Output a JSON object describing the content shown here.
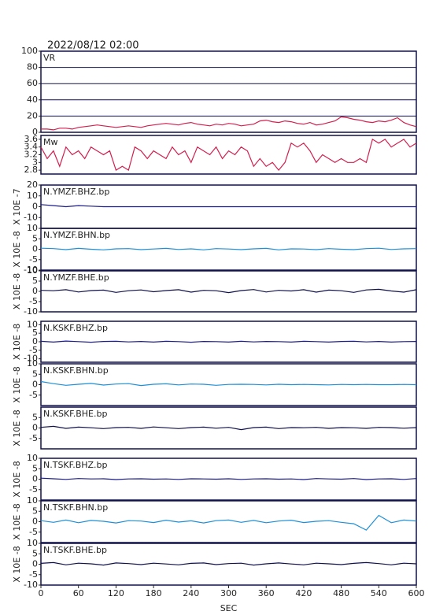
{
  "chart_data": [
    {
      "type": "line",
      "title": "2022/08/12 02:00",
      "label": "VR",
      "color": "#d21f4f",
      "grid": true,
      "xlim": [
        0,
        600
      ],
      "ylim": [
        0,
        100
      ],
      "yticks": [
        0,
        20,
        40,
        60,
        80,
        100
      ],
      "x": [
        0,
        10,
        20,
        30,
        40,
        50,
        60,
        70,
        80,
        90,
        100,
        110,
        120,
        130,
        140,
        150,
        160,
        170,
        180,
        190,
        200,
        210,
        220,
        230,
        240,
        250,
        260,
        270,
        280,
        290,
        300,
        310,
        320,
        330,
        340,
        350,
        360,
        370,
        380,
        390,
        400,
        410,
        420,
        430,
        440,
        450,
        460,
        470,
        480,
        490,
        500,
        510,
        520,
        530,
        540,
        550,
        560,
        570,
        580,
        590,
        600
      ],
      "values": [
        4,
        4,
        3,
        5,
        5,
        4,
        6,
        7,
        8,
        9,
        8,
        7,
        6,
        7,
        8,
        7,
        6,
        8,
        9,
        10,
        11,
        10,
        9,
        11,
        12,
        10,
        9,
        8,
        10,
        9,
        11,
        10,
        8,
        9,
        10,
        14,
        15,
        13,
        12,
        14,
        13,
        11,
        10,
        12,
        9,
        10,
        12,
        14,
        19,
        18,
        16,
        15,
        13,
        12,
        14,
        13,
        15,
        18,
        12,
        9,
        7
      ]
    },
    {
      "type": "line",
      "label": "Mw",
      "color": "#d21f4f",
      "grid": false,
      "xlim": [
        0,
        600
      ],
      "ylim": [
        2.7,
        3.7
      ],
      "yticks": [
        2.8,
        3.0,
        3.2,
        3.4,
        3.6
      ],
      "x": [
        0,
        10,
        20,
        30,
        40,
        50,
        60,
        70,
        80,
        90,
        100,
        110,
        120,
        130,
        140,
        150,
        160,
        170,
        180,
        190,
        200,
        210,
        220,
        230,
        240,
        250,
        260,
        270,
        280,
        290,
        300,
        310,
        320,
        330,
        340,
        350,
        360,
        370,
        380,
        390,
        400,
        410,
        420,
        430,
        440,
        450,
        460,
        470,
        480,
        490,
        500,
        510,
        520,
        530,
        540,
        550,
        560,
        570,
        580,
        590,
        600
      ],
      "values": [
        3.4,
        3.1,
        3.3,
        2.9,
        3.4,
        3.2,
        3.3,
        3.1,
        3.4,
        3.3,
        3.2,
        3.3,
        2.8,
        2.9,
        2.8,
        3.4,
        3.3,
        3.1,
        3.3,
        3.2,
        3.1,
        3.4,
        3.2,
        3.3,
        3.0,
        3.4,
        3.3,
        3.2,
        3.4,
        3.1,
        3.3,
        3.2,
        3.4,
        3.3,
        2.9,
        3.1,
        2.9,
        3.0,
        2.8,
        3.0,
        3.5,
        3.4,
        3.5,
        3.3,
        3.0,
        3.2,
        3.1,
        3.0,
        3.1,
        3.0,
        3.0,
        3.1,
        3.0,
        3.6,
        3.5,
        3.6,
        3.4,
        3.5,
        3.6,
        3.4,
        3.5
      ]
    },
    {
      "type": "line",
      "label": "N.YMZF.BHZ.bp",
      "ylabel": "X 10E -7",
      "color": "#1a1a8c",
      "xlim": [
        0,
        600
      ],
      "ylim": [
        -20,
        20
      ],
      "yticks": [
        -10,
        0,
        10,
        20
      ],
      "x": [
        0,
        20,
        40,
        60,
        80,
        100,
        120,
        140,
        160,
        180,
        200,
        220,
        240,
        260,
        280,
        300,
        320,
        340,
        360,
        380,
        400,
        420,
        440,
        460,
        480,
        500,
        520,
        540,
        560,
        580,
        600
      ],
      "values": [
        2,
        1,
        0,
        1,
        0.5,
        0,
        0,
        0,
        0,
        0,
        0,
        0,
        0,
        0,
        0,
        0,
        0,
        0,
        0,
        0,
        0,
        0,
        0,
        0,
        0,
        0,
        0,
        0,
        0,
        0,
        0
      ]
    },
    {
      "type": "line",
      "label": "N.YMZF.BHN.bp",
      "ylabel": "X 10E -8",
      "color": "#1e8fd6",
      "xlim": [
        0,
        600
      ],
      "ylim": [
        -10,
        10
      ],
      "yticks": [
        -10,
        -5,
        0,
        5,
        10
      ],
      "x": [
        0,
        20,
        40,
        60,
        80,
        100,
        120,
        140,
        160,
        180,
        200,
        220,
        240,
        260,
        280,
        300,
        320,
        340,
        360,
        380,
        400,
        420,
        440,
        460,
        480,
        500,
        520,
        540,
        560,
        580,
        600
      ],
      "values": [
        0.5,
        0.3,
        -0.2,
        0.4,
        0,
        -0.3,
        0.2,
        0.3,
        -0.2,
        0.1,
        0.4,
        -0.1,
        0.2,
        -0.3,
        0.3,
        0.1,
        -0.2,
        0.2,
        0.4,
        -0.3,
        0.2,
        0.1,
        -0.2,
        0.3,
        0,
        -0.2,
        0.3,
        0.5,
        -0.1,
        0.2,
        0.3
      ]
    },
    {
      "type": "line",
      "label": "N.YMZF.BHE.bp",
      "ylabel": "X 10E -8",
      "color": "#10104a",
      "xlim": [
        0,
        600
      ],
      "ylim": [
        -10,
        10
      ],
      "yticks": [
        -10,
        -5,
        0,
        5,
        10
      ],
      "x": [
        0,
        20,
        40,
        60,
        80,
        100,
        120,
        140,
        160,
        180,
        200,
        220,
        240,
        260,
        280,
        300,
        320,
        340,
        360,
        380,
        400,
        420,
        440,
        460,
        480,
        500,
        520,
        540,
        560,
        580,
        600
      ],
      "values": [
        0.5,
        0.3,
        0.8,
        -0.3,
        0.4,
        0.6,
        -0.5,
        0.3,
        0.7,
        -0.2,
        0.4,
        0.8,
        -0.4,
        0.5,
        0.3,
        -0.6,
        0.4,
        0.9,
        -0.3,
        0.5,
        0.2,
        0.8,
        -0.4,
        0.6,
        0.3,
        -0.5,
        0.7,
        1,
        0.2,
        -0.4,
        0.8
      ]
    },
    {
      "type": "line",
      "label": "N.KSKF.BHZ.bp",
      "ylabel": "X 10E -8",
      "color": "#1a1a8c",
      "xlim": [
        0,
        600
      ],
      "ylim": [
        -12,
        12
      ],
      "yticks": [
        -10,
        -5,
        0,
        5,
        10
      ],
      "x": [
        0,
        20,
        40,
        60,
        80,
        100,
        120,
        140,
        160,
        180,
        200,
        220,
        240,
        260,
        280,
        300,
        320,
        340,
        360,
        380,
        400,
        420,
        440,
        460,
        480,
        500,
        520,
        540,
        560,
        580,
        600
      ],
      "values": [
        0.3,
        -0.2,
        0.4,
        0.1,
        -0.3,
        0.2,
        0.3,
        -0.1,
        0.2,
        -0.2,
        0.3,
        0.1,
        -0.3,
        0.2,
        0.1,
        -0.2,
        0.3,
        -0.1,
        0.2,
        0.1,
        -0.2,
        0.3,
        0.1,
        -0.2,
        0.2,
        0.3,
        -0.1,
        0.2,
        -0.2,
        0.1,
        0.2
      ]
    },
    {
      "type": "line",
      "label": "N.KSKF.BHN.bp",
      "ylabel": "X 10E -8",
      "color": "#1e8fd6",
      "xlim": [
        0,
        600
      ],
      "ylim": [
        -10,
        10
      ],
      "yticks": [
        -5,
        0,
        5,
        10
      ],
      "x": [
        0,
        20,
        40,
        60,
        80,
        100,
        120,
        140,
        160,
        180,
        200,
        220,
        240,
        260,
        280,
        300,
        320,
        340,
        360,
        380,
        400,
        420,
        440,
        460,
        480,
        500,
        520,
        540,
        560,
        580,
        600
      ],
      "values": [
        1.5,
        0.5,
        -0.3,
        0.2,
        0.6,
        -0.2,
        0.3,
        0.5,
        -0.4,
        0.2,
        0.4,
        -0.1,
        0.3,
        0.2,
        -0.3,
        0.1,
        0.2,
        0.1,
        -0.1,
        0.2,
        0,
        0.1,
        0,
        -0.1,
        0.1,
        0,
        0.1,
        0,
        0,
        0.1,
        0
      ]
    },
    {
      "type": "line",
      "label": "N.KSKF.BHE.bp",
      "ylabel": "X 10E -8",
      "color": "#10104a",
      "xlim": [
        0,
        600
      ],
      "ylim": [
        -10,
        10
      ],
      "yticks": [
        -5,
        0,
        5
      ],
      "x": [
        0,
        20,
        40,
        60,
        80,
        100,
        120,
        140,
        160,
        180,
        200,
        220,
        240,
        260,
        280,
        300,
        320,
        340,
        360,
        380,
        400,
        420,
        440,
        460,
        480,
        500,
        520,
        540,
        560,
        580,
        600
      ],
      "values": [
        0.3,
        0.8,
        -0.2,
        0.4,
        0.1,
        -0.3,
        0.2,
        0.3,
        -0.2,
        0.5,
        0.1,
        -0.3,
        0.2,
        0.4,
        -0.1,
        0.3,
        -0.8,
        0.2,
        0.4,
        -0.3,
        0.2,
        0.1,
        0.3,
        -0.2,
        0.2,
        0.1,
        -0.2,
        0.3,
        0.2,
        -0.1,
        0.2
      ]
    },
    {
      "type": "line",
      "label": "N.TSKF.BHZ.bp",
      "ylabel": "X 10E -8",
      "color": "#1a1a8c",
      "xlim": [
        0,
        600
      ],
      "ylim": [
        -10,
        10
      ],
      "yticks": [
        -5,
        0,
        5,
        10
      ],
      "x": [
        0,
        20,
        40,
        60,
        80,
        100,
        120,
        140,
        160,
        180,
        200,
        220,
        240,
        260,
        280,
        300,
        320,
        340,
        360,
        380,
        400,
        420,
        440,
        460,
        480,
        500,
        520,
        540,
        560,
        580,
        600
      ],
      "values": [
        0.5,
        0.2,
        -0.1,
        0.3,
        0.1,
        0.2,
        -0.2,
        0.1,
        0.2,
        0,
        0.1,
        -0.1,
        0.2,
        0.1,
        0,
        0.2,
        -0.1,
        0.1,
        0.2,
        0,
        0.1,
        -0.2,
        0.3,
        0.1,
        0,
        0.3,
        -0.2,
        0.1,
        0.2,
        -0.1,
        0.3
      ]
    },
    {
      "type": "line",
      "label": "N.TSKF.BHN.bp",
      "ylabel": "X 10E -8",
      "color": "#1e8fd6",
      "xlim": [
        0,
        600
      ],
      "ylim": [
        -10,
        10
      ],
      "yticks": [
        -5,
        0,
        5,
        10
      ],
      "x": [
        0,
        20,
        40,
        60,
        80,
        100,
        120,
        140,
        160,
        180,
        200,
        220,
        240,
        260,
        280,
        300,
        320,
        340,
        360,
        380,
        400,
        420,
        440,
        460,
        480,
        500,
        520,
        540,
        560,
        580,
        600
      ],
      "values": [
        0.5,
        -0.3,
        0.8,
        -0.5,
        0.6,
        0.2,
        -0.6,
        0.5,
        0.3,
        -0.4,
        0.7,
        -0.2,
        0.4,
        -0.6,
        0.5,
        0.8,
        -0.3,
        0.6,
        -0.5,
        0.3,
        0.7,
        -0.4,
        0.2,
        0.5,
        -0.3,
        -1,
        -4,
        3,
        -0.5,
        0.8,
        0.3
      ]
    },
    {
      "type": "line",
      "label": "N.TSKF.BHE.bp",
      "ylabel": "X 10E -8",
      "color": "#10104a",
      "xlim": [
        0,
        600
      ],
      "ylim": [
        -10,
        10
      ],
      "yticks": [
        -10,
        -5,
        0,
        5,
        10
      ],
      "xticks": [
        0,
        60,
        120,
        180,
        240,
        300,
        360,
        420,
        480,
        540,
        600
      ],
      "xlabel": "SEC",
      "x": [
        0,
        20,
        40,
        60,
        80,
        100,
        120,
        140,
        160,
        180,
        200,
        220,
        240,
        260,
        280,
        300,
        320,
        340,
        360,
        380,
        400,
        420,
        440,
        460,
        480,
        500,
        520,
        540,
        560,
        580,
        600
      ],
      "values": [
        0.4,
        0.8,
        -0.3,
        0.5,
        0.2,
        -0.4,
        0.6,
        0.3,
        -0.2,
        0.5,
        0.1,
        -0.3,
        0.4,
        0.6,
        -0.2,
        0.3,
        0.5,
        -0.4,
        0.2,
        0.6,
        0.1,
        -0.3,
        0.5,
        0.2,
        -0.2,
        0.4,
        0.8,
        0.3,
        -0.3,
        0.5,
        0.2
      ]
    }
  ]
}
